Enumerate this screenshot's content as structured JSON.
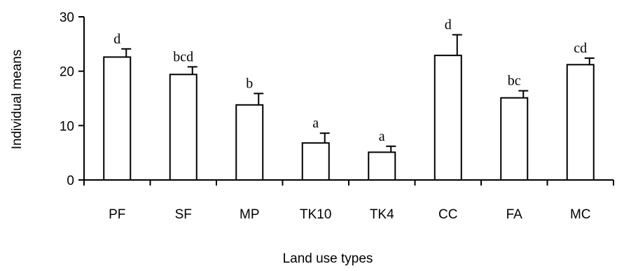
{
  "chart_data": {
    "type": "bar",
    "title": "",
    "xlabel": "Land use types",
    "ylabel": "Individual means",
    "ylim": [
      0,
      30
    ],
    "yticks": [
      0,
      10,
      20,
      30
    ],
    "grid": false,
    "colors": {
      "bar_fill": "#ffffff",
      "bar_stroke": "#000000",
      "axis": "#000000"
    },
    "categories": [
      "PF",
      "SF",
      "MP",
      "TK10",
      "TK4",
      "CC",
      "FA",
      "MC"
    ],
    "values": [
      22.6,
      19.4,
      13.8,
      6.8,
      5.1,
      22.9,
      15.1,
      21.2
    ],
    "errors": [
      1.5,
      1.4,
      2.1,
      1.8,
      1.1,
      3.8,
      1.3,
      1.2
    ],
    "significance": [
      "d",
      "bcd",
      "b",
      "a",
      "a",
      "d",
      "bc",
      "cd"
    ]
  }
}
